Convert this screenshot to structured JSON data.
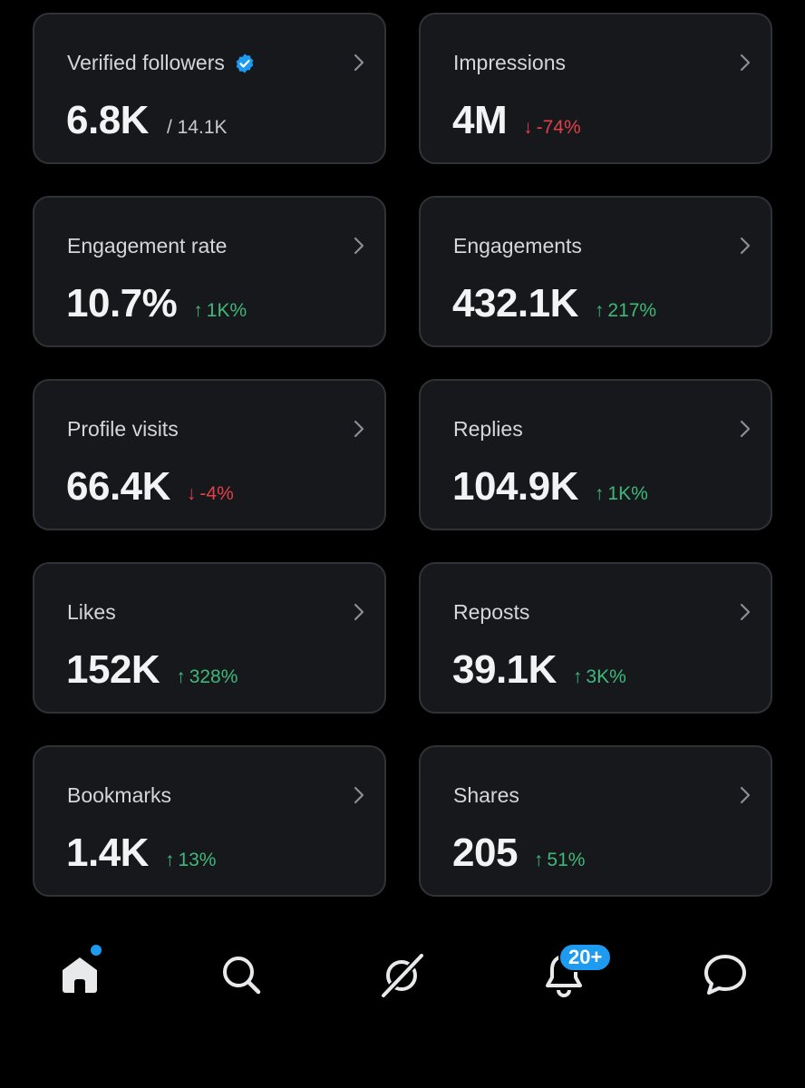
{
  "cards": [
    {
      "label": "Verified followers",
      "value": "6.8K",
      "delta": "/ 14.1K",
      "direction": "total",
      "verified": true
    },
    {
      "label": "Impressions",
      "value": "4M",
      "delta": "-74%",
      "direction": "down"
    },
    {
      "label": "Engagement rate",
      "value": "10.7%",
      "delta": "1K%",
      "direction": "up"
    },
    {
      "label": "Engagements",
      "value": "432.1K",
      "delta": "217%",
      "direction": "up"
    },
    {
      "label": "Profile visits",
      "value": "66.4K",
      "delta": "-4%",
      "direction": "down"
    },
    {
      "label": "Replies",
      "value": "104.9K",
      "delta": "1K%",
      "direction": "up"
    },
    {
      "label": "Likes",
      "value": "152K",
      "delta": "328%",
      "direction": "up"
    },
    {
      "label": "Reposts",
      "value": "39.1K",
      "delta": "3K%",
      "direction": "up"
    },
    {
      "label": "Bookmarks",
      "value": "1.4K",
      "delta": "13%",
      "direction": "up"
    },
    {
      "label": "Shares",
      "value": "205",
      "delta": "51%",
      "direction": "up"
    }
  ],
  "arrows": {
    "up": "↑",
    "down": "↓"
  },
  "tabbar": {
    "tabs": [
      {
        "name": "home",
        "icon": "home-icon",
        "active": true
      },
      {
        "name": "search",
        "icon": "search-icon"
      },
      {
        "name": "grok",
        "icon": "grok-icon"
      },
      {
        "name": "notifications",
        "icon": "bell-icon"
      },
      {
        "name": "messages",
        "icon": "message-icon"
      }
    ],
    "notifications_badge": "20+"
  },
  "colors": {
    "background": "#000000",
    "card": "#16181c",
    "card_border": "#2f3336",
    "up": "#3fb97a",
    "down": "#e0404a",
    "accent": "#1d9bf0"
  }
}
